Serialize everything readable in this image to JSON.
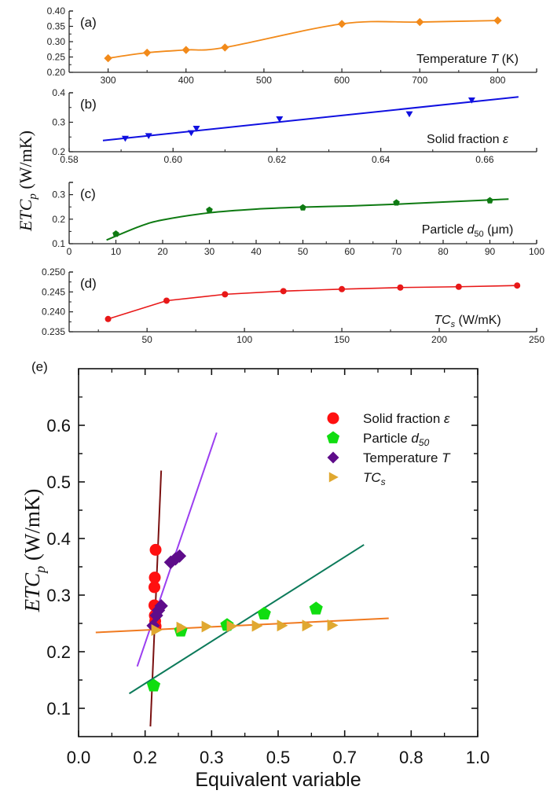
{
  "chart_data": [
    {
      "id": "a",
      "type": "line",
      "panel_label": "(a)",
      "xlabel": "Temperature T (K)",
      "xlabel_parts": {
        "pre": "Temperature ",
        "ital": "T",
        "post": " (K)"
      },
      "ylabel": "ETCp (W/mK)",
      "xlim": [
        250,
        850
      ],
      "ylim": [
        0.2,
        0.4
      ],
      "xticks": [
        300,
        400,
        500,
        600,
        700,
        800
      ],
      "xtick_labels": [
        "300",
        "400",
        "500",
        "600",
        "700",
        "800"
      ],
      "yticks": [
        0.2,
        0.25,
        0.3,
        0.35,
        0.4
      ],
      "ytick_labels": [
        "0.20",
        "0.25",
        "0.30",
        "0.35",
        "0.40"
      ],
      "color": "#f28a1a",
      "marker": "diamond",
      "series": [
        {
          "name": "Temperature T",
          "x": [
            300,
            350,
            400,
            450,
            600,
            700,
            800
          ],
          "y": [
            0.246,
            0.264,
            0.273,
            0.281,
            0.358,
            0.364,
            0.369
          ]
        }
      ]
    },
    {
      "id": "b",
      "type": "scatter",
      "panel_label": "(b)",
      "xlabel": "Solid fraction ε",
      "xlabel_parts": {
        "pre": "Solid fraction ",
        "ital": "ε",
        "post": ""
      },
      "xlim": [
        0.58,
        0.67
      ],
      "ylim": [
        0.2,
        0.4
      ],
      "xticks": [
        0.58,
        0.6,
        0.62,
        0.64,
        0.66
      ],
      "xtick_labels": [
        "0.58",
        "0.60",
        "0.62",
        "0.64",
        "0.66"
      ],
      "yticks": [
        0.2,
        0.3,
        0.4
      ],
      "ytick_labels": [
        "0.2",
        "0.3",
        "0.4"
      ],
      "color": "#1010e0",
      "marker": "triangle-down",
      "series": [
        {
          "name": "Solid fraction ε",
          "x": [
            0.5908,
            0.5953,
            0.6035,
            0.6045,
            0.6205,
            0.6455,
            0.6575
          ],
          "y": [
            0.245,
            0.254,
            0.264,
            0.279,
            0.311,
            0.328,
            0.375
          ]
        }
      ],
      "fit_line": {
        "x": [
          0.5865,
          0.6665
        ],
        "y": [
          0.238,
          0.386
        ]
      }
    },
    {
      "id": "c",
      "type": "line",
      "panel_label": "(c)",
      "xlabel": "Particle d50 (μm)",
      "xlabel_parts": {
        "pre": "Particle ",
        "ital": "d",
        "sub": "50",
        "post": " (μm)"
      },
      "xlim": [
        0,
        100
      ],
      "ylim": [
        0.1,
        0.35
      ],
      "xticks": [
        0,
        10,
        20,
        30,
        40,
        50,
        60,
        70,
        80,
        90,
        100
      ],
      "xtick_labels": [
        "0",
        "10",
        "20",
        "30",
        "40",
        "50",
        "60",
        "70",
        "80",
        "90",
        "100"
      ],
      "yticks": [
        0.1,
        0.2,
        0.3
      ],
      "ytick_labels": [
        "0.1",
        "0.2",
        "0.3"
      ],
      "color": "#0e7a12",
      "marker": "pentagon",
      "series": [
        {
          "name": "Particle d50",
          "x": [
            10,
            30,
            50,
            70,
            90
          ],
          "y": [
            0.14,
            0.237,
            0.247,
            0.267,
            0.276
          ]
        }
      ],
      "fit_curve": {
        "x": [
          8,
          15,
          20,
          30,
          40,
          50,
          60,
          70,
          80,
          94
        ],
        "y": [
          0.115,
          0.17,
          0.197,
          0.226,
          0.241,
          0.249,
          0.254,
          0.261,
          0.27,
          0.282
        ]
      }
    },
    {
      "id": "d",
      "type": "line",
      "panel_label": "(d)",
      "xlabel": "TCs (W/mK)",
      "xlabel_parts": {
        "pre": "",
        "ital": "TC",
        "isub": "s",
        "post": " (W/mK)"
      },
      "xlim": [
        10,
        250
      ],
      "ylim": [
        0.235,
        0.25
      ],
      "xticks": [
        50,
        100,
        150,
        200,
        250
      ],
      "xtick_labels": [
        "50",
        "100",
        "150",
        "200",
        "250"
      ],
      "yticks": [
        0.235,
        0.24,
        0.245,
        0.25
      ],
      "ytick_labels": [
        "0.235",
        "0.240",
        "0.245",
        "0.250"
      ],
      "color": "#e81818",
      "marker": "circle",
      "series": [
        {
          "name": "TCs",
          "x": [
            30,
            60,
            90,
            120,
            150,
            180,
            210,
            240
          ],
          "y": [
            0.2382,
            0.2428,
            0.2444,
            0.2452,
            0.2457,
            0.2461,
            0.2463,
            0.2466
          ]
        }
      ]
    },
    {
      "id": "e",
      "type": "scatter",
      "panel_label": "(e)",
      "xlabel": "Equivalent variable",
      "ylabel": "ETCp (W/mK)",
      "xlim": [
        0.0,
        1.0
      ],
      "ylim": [
        0.05,
        0.7
      ],
      "xticks": [
        0.0,
        0.1667,
        0.3333,
        0.5,
        0.6667,
        0.8333,
        1.0
      ],
      "xtick_labels": [
        "0.0",
        "0.2",
        "0.3",
        "0.5",
        "0.7",
        "0.8",
        "1.0"
      ],
      "yticks": [
        0.1,
        0.2,
        0.3,
        0.4,
        0.5,
        0.6
      ],
      "ytick_labels": [
        "0.1",
        "0.2",
        "0.3",
        "0.4",
        "0.5",
        "0.6"
      ],
      "legend_position": "top-right",
      "series": [
        {
          "name": "Solid fraction ε",
          "legend": {
            "pre": "Solid fraction ",
            "ital": "ε"
          },
          "marker": "circle",
          "color": "#ff1010",
          "x": [
            0.193,
            0.192,
            0.191,
            0.19,
            0.19,
            0.191,
            0.193
          ],
          "y": [
            0.245,
            0.254,
            0.264,
            0.282,
            0.314,
            0.331,
            0.38
          ]
        },
        {
          "name": "Particle d50",
          "legend": {
            "pre": "Particle ",
            "ital": "d",
            "isub": "50"
          },
          "marker": "pentagon",
          "color": "#10dd10",
          "x": [
            0.188,
            0.256,
            0.372,
            0.465,
            0.595
          ],
          "y": [
            0.14,
            0.237,
            0.247,
            0.267,
            0.276
          ]
        },
        {
          "name": "Temperature T",
          "legend": {
            "pre": "Temperature ",
            "ital": "T"
          },
          "marker": "diamond",
          "color": "#5e0c8a",
          "x": [
            0.187,
            0.195,
            0.2,
            0.207,
            0.231,
            0.243,
            0.253
          ],
          "y": [
            0.246,
            0.264,
            0.273,
            0.281,
            0.358,
            0.364,
            0.369
          ]
        },
        {
          "name": "TCs",
          "legend": {
            "pre": "",
            "ital": "TC",
            "isub": "s"
          },
          "marker": "triangle-right",
          "color": "#e0a830",
          "x": [
            0.194,
            0.257,
            0.32,
            0.383,
            0.446,
            0.509,
            0.572,
            0.635
          ],
          "y": [
            0.2382,
            0.2428,
            0.2444,
            0.2452,
            0.2457,
            0.2461,
            0.2463,
            0.2466
          ]
        }
      ],
      "fit_lines": [
        {
          "name": "Solid fraction fit",
          "color": "#7a1010",
          "x": [
            0.18,
            0.207
          ],
          "y": [
            0.068,
            0.52
          ]
        },
        {
          "name": "Temperature fit",
          "color": "#9b3ef0",
          "x": [
            0.147,
            0.346
          ],
          "y": [
            0.174,
            0.587
          ]
        },
        {
          "name": "Particle fit",
          "color": "#0c7a5a",
          "x": [
            0.127,
            0.715
          ],
          "y": [
            0.126,
            0.389
          ]
        },
        {
          "name": "TCs fit",
          "color": "#f07a20",
          "x": [
            0.043,
            0.777
          ],
          "y": [
            0.234,
            0.259
          ]
        }
      ]
    }
  ],
  "shared_ylabel": {
    "main": "ETC",
    "sub": "p",
    "units": " (W/mK)"
  }
}
